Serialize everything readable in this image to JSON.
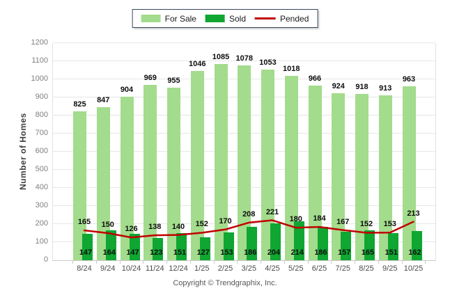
{
  "legend": {
    "items": [
      {
        "label": "For Sale",
        "swatch": "bar",
        "color": "#A3DC8C"
      },
      {
        "label": "Sold",
        "swatch": "bar",
        "color": "#0FA632"
      },
      {
        "label": "Pended",
        "swatch": "line",
        "color": "#C00000"
      }
    ]
  },
  "chart_data": {
    "type": "bar",
    "categories": [
      "8/24",
      "9/24",
      "10/24",
      "11/24",
      "12/24",
      "1/25",
      "2/25",
      "3/25",
      "4/25",
      "5/25",
      "6/25",
      "7/25",
      "8/25",
      "9/25",
      "10/25"
    ],
    "series": [
      {
        "name": "For Sale",
        "type": "bar",
        "color": "#A3DC8C",
        "values": [
          825,
          847,
          904,
          969,
          955,
          1046,
          1085,
          1078,
          1053,
          1018,
          966,
          924,
          918,
          913,
          963
        ]
      },
      {
        "name": "Sold",
        "type": "bar",
        "color": "#0FA632",
        "values": [
          147,
          164,
          147,
          123,
          151,
          127,
          153,
          186,
          204,
          214,
          186,
          157,
          165,
          151,
          162
        ]
      },
      {
        "name": "Pended",
        "type": "line",
        "color": "#C00000",
        "values": [
          165,
          150,
          126,
          138,
          140,
          152,
          170,
          208,
          221,
          180,
          184,
          167,
          152,
          153,
          213
        ]
      }
    ],
    "title": "",
    "xlabel": "",
    "ylabel": "Number of Homes",
    "ylim": [
      0,
      1200
    ],
    "ytick_step": 100,
    "grid": true,
    "legend_position": "top",
    "value_labels": true
  },
  "palette": {
    "grid_line": "#E6E6E6",
    "axis_line": "#C9C9C9",
    "y_tick_text": "#7F7F7F",
    "x_tick_text": "#4A4A4A",
    "value_label_text": "#0D0D0D",
    "legend_border": "#36455B"
  },
  "footer": {
    "copyright": "Copyright © Trendgraphix, Inc."
  }
}
